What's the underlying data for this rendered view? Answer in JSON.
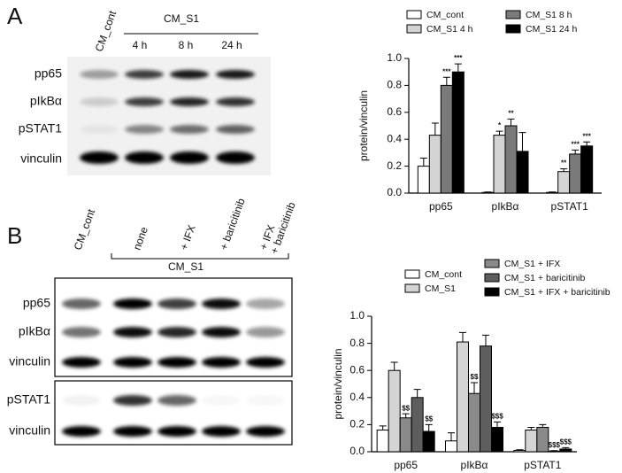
{
  "blots": {
    "panel_a": "A",
    "panel_b": "B",
    "a_lanes": {
      "control": "CM_cont",
      "group": "CM_S1",
      "times": [
        "4 h",
        "8  h",
        "24 h"
      ]
    },
    "a_rows": [
      "pp65",
      "pIkBα",
      "pSTAT1",
      "vinculin"
    ],
    "b_lanes": {
      "control": "CM_cont",
      "group": "CM_S1",
      "treatments": [
        "none",
        "+ IFX",
        "+ baricitinib",
        "+ IFX\n+ baricitinib"
      ]
    },
    "b_rows": [
      "pp65",
      "pIkBα",
      "vinculin",
      "pSTAT1",
      "vinculin"
    ]
  },
  "chart_data": [
    {
      "type": "bar",
      "ylabel": "protein/vinculin",
      "categories": [
        "pp65",
        "pIkBα",
        "pSTAT1"
      ],
      "ylim": [
        0,
        1
      ],
      "yticks": [
        {
          "value": 0,
          "label": "0.0"
        },
        0.2,
        0.4,
        0.6,
        0.8,
        {
          "value": 1,
          "label": "1.0"
        }
      ],
      "series": [
        {
          "name": "CM_cont",
          "color": "#ffffff",
          "values": [
            0.2,
            0.005,
            0.005
          ],
          "errors": [
            0.06,
            0.003,
            0.003
          ],
          "annotations": [
            null,
            null,
            null
          ]
        },
        {
          "name": "CM_S1 4 h",
          "color": "#d4d4d4",
          "values": [
            0.43,
            0.43,
            0.16
          ],
          "errors": [
            0.09,
            0.03,
            0.02
          ],
          "annotations": [
            null,
            "*",
            "**"
          ]
        },
        {
          "name": "CM_S1 8 h",
          "color": "#7a7a7a",
          "values": [
            0.8,
            0.5,
            0.29
          ],
          "errors": [
            0.06,
            0.05,
            0.03
          ],
          "annotations": [
            "***",
            "**",
            "***"
          ]
        },
        {
          "name": "CM_S1 24 h",
          "color": "#000000",
          "values": [
            0.9,
            0.31,
            0.35
          ],
          "errors": [
            0.06,
            0.14,
            0.03
          ],
          "annotations": [
            "***",
            null,
            "***"
          ]
        }
      ]
    },
    {
      "type": "bar",
      "ylabel": "protein/vinculin",
      "categories": [
        "pp65",
        "pIkBα",
        "pSTAT1"
      ],
      "ylim": [
        0,
        1
      ],
      "yticks": [
        {
          "value": 0,
          "label": "0.0"
        },
        0.2,
        0.4,
        0.6,
        0.8,
        {
          "value": 1,
          "label": "1.0"
        }
      ],
      "series": [
        {
          "name": "CM_cont",
          "color": "#ffffff",
          "values": [
            0.16,
            0.08,
            0.01
          ],
          "errors": [
            0.03,
            0.06,
            0.005
          ],
          "annotations": [
            null,
            null,
            null
          ]
        },
        {
          "name": "CM_S1",
          "color": "#d4d4d4",
          "values": [
            0.6,
            0.81,
            0.16
          ],
          "errors": [
            0.06,
            0.07,
            0.02
          ],
          "annotations": [
            null,
            null,
            null
          ]
        },
        {
          "name": "CM_S1 + IFX",
          "color": "#8a8a8a",
          "values": [
            0.25,
            0.43,
            0.18
          ],
          "errors": [
            0.03,
            0.08,
            0.02
          ],
          "annotations": [
            "$$",
            "$$",
            null
          ]
        },
        {
          "name": "CM_S1 + baricitinib",
          "color": "#5e5e5e",
          "values": [
            0.4,
            0.78,
            0.005
          ],
          "errors": [
            0.06,
            0.08,
            0.003
          ],
          "annotations": [
            null,
            null,
            "$$$"
          ]
        },
        {
          "name": "CM_S1 + IFX + baricitinib",
          "color": "#000000",
          "values": [
            0.15,
            0.18,
            0.02
          ],
          "errors": [
            0.05,
            0.04,
            0.01
          ],
          "annotations": [
            "$$",
            "$$$",
            "$$$"
          ]
        }
      ]
    }
  ]
}
